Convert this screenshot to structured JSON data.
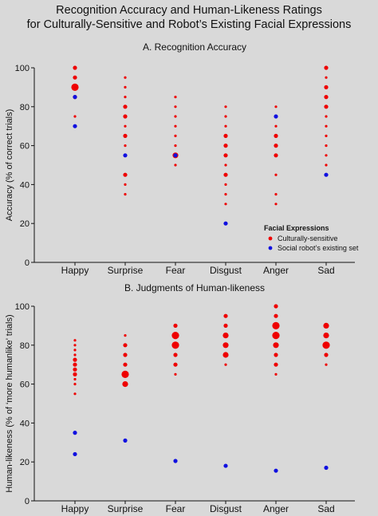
{
  "title": {
    "line1": "Recognition Accuracy and Human-Likeness Ratings",
    "line2": "for Culturally-Sensitive and Robot’s Existing Facial Expressions"
  },
  "colors": {
    "culturally": "#ee0000",
    "robot": "#1010e0",
    "background": "#d9d9d9"
  },
  "chart_data": [
    {
      "type": "scatter",
      "title": "A. Recognition Accuracy",
      "xlabel": "",
      "ylabel": "Accuracy (% of correct trials)",
      "categories": [
        "Happy",
        "Surprise",
        "Fear",
        "Disgust",
        "Anger",
        "Sad"
      ],
      "ylim": [
        0,
        100
      ],
      "yticks": [
        "0",
        "20",
        "40",
        "60",
        "80",
        "100"
      ],
      "grid": false,
      "legend": {
        "title": "Facial Expressions",
        "position": "lower-right",
        "entries": [
          "Culturally-sensitive",
          "Social robot’s existing set"
        ]
      },
      "series": [
        {
          "name": "Culturally-sensitive",
          "points": [
            {
              "x": "Happy",
              "y": 100,
              "size": 2
            },
            {
              "x": "Happy",
              "y": 95,
              "size": 2
            },
            {
              "x": "Happy",
              "y": 90,
              "size": 4
            },
            {
              "x": "Happy",
              "y": 85,
              "size": 2
            },
            {
              "x": "Happy",
              "y": 75,
              "size": 1
            },
            {
              "x": "Surprise",
              "y": 95,
              "size": 1
            },
            {
              "x": "Surprise",
              "y": 90,
              "size": 1
            },
            {
              "x": "Surprise",
              "y": 85,
              "size": 1
            },
            {
              "x": "Surprise",
              "y": 80,
              "size": 2
            },
            {
              "x": "Surprise",
              "y": 75,
              "size": 2
            },
            {
              "x": "Surprise",
              "y": 70,
              "size": 1
            },
            {
              "x": "Surprise",
              "y": 65,
              "size": 2
            },
            {
              "x": "Surprise",
              "y": 60,
              "size": 1
            },
            {
              "x": "Surprise",
              "y": 45,
              "size": 2
            },
            {
              "x": "Surprise",
              "y": 40,
              "size": 1
            },
            {
              "x": "Surprise",
              "y": 35,
              "size": 1
            },
            {
              "x": "Fear",
              "y": 85,
              "size": 1
            },
            {
              "x": "Fear",
              "y": 80,
              "size": 1
            },
            {
              "x": "Fear",
              "y": 75,
              "size": 1
            },
            {
              "x": "Fear",
              "y": 70,
              "size": 1
            },
            {
              "x": "Fear",
              "y": 65,
              "size": 1
            },
            {
              "x": "Fear",
              "y": 60,
              "size": 1
            },
            {
              "x": "Fear",
              "y": 55,
              "size": 3
            },
            {
              "x": "Fear",
              "y": 50,
              "size": 1
            },
            {
              "x": "Disgust",
              "y": 80,
              "size": 1
            },
            {
              "x": "Disgust",
              "y": 75,
              "size": 1
            },
            {
              "x": "Disgust",
              "y": 70,
              "size": 1
            },
            {
              "x": "Disgust",
              "y": 65,
              "size": 2
            },
            {
              "x": "Disgust",
              "y": 60,
              "size": 2
            },
            {
              "x": "Disgust",
              "y": 55,
              "size": 2
            },
            {
              "x": "Disgust",
              "y": 50,
              "size": 1
            },
            {
              "x": "Disgust",
              "y": 45,
              "size": 2
            },
            {
              "x": "Disgust",
              "y": 40,
              "size": 1
            },
            {
              "x": "Disgust",
              "y": 35,
              "size": 1
            },
            {
              "x": "Disgust",
              "y": 30,
              "size": 1
            },
            {
              "x": "Anger",
              "y": 80,
              "size": 1
            },
            {
              "x": "Anger",
              "y": 75,
              "size": 1
            },
            {
              "x": "Anger",
              "y": 70,
              "size": 1
            },
            {
              "x": "Anger",
              "y": 65,
              "size": 2
            },
            {
              "x": "Anger",
              "y": 60,
              "size": 2
            },
            {
              "x": "Anger",
              "y": 55,
              "size": 2
            },
            {
              "x": "Anger",
              "y": 45,
              "size": 1
            },
            {
              "x": "Anger",
              "y": 35,
              "size": 1
            },
            {
              "x": "Anger",
              "y": 30,
              "size": 1
            },
            {
              "x": "Sad",
              "y": 100,
              "size": 2
            },
            {
              "x": "Sad",
              "y": 95,
              "size": 1
            },
            {
              "x": "Sad",
              "y": 90,
              "size": 2
            },
            {
              "x": "Sad",
              "y": 85,
              "size": 2
            },
            {
              "x": "Sad",
              "y": 80,
              "size": 2
            },
            {
              "x": "Sad",
              "y": 75,
              "size": 1
            },
            {
              "x": "Sad",
              "y": 70,
              "size": 1
            },
            {
              "x": "Sad",
              "y": 65,
              "size": 1
            },
            {
              "x": "Sad",
              "y": 60,
              "size": 1
            },
            {
              "x": "Sad",
              "y": 55,
              "size": 1
            },
            {
              "x": "Sad",
              "y": 50,
              "size": 1
            }
          ]
        },
        {
          "name": "Social robot’s existing set",
          "points": [
            {
              "x": "Happy",
              "y": 85,
              "size": 2
            },
            {
              "x": "Happy",
              "y": 70,
              "size": 2
            },
            {
              "x": "Surprise",
              "y": 55,
              "size": 2
            },
            {
              "x": "Fear",
              "y": 55,
              "size": 2
            },
            {
              "x": "Disgust",
              "y": 20,
              "size": 2
            },
            {
              "x": "Anger",
              "y": 75,
              "size": 2
            },
            {
              "x": "Sad",
              "y": 45,
              "size": 2
            }
          ]
        }
      ]
    },
    {
      "type": "scatter",
      "title": "B. Judgments of Human-likeness",
      "xlabel": "",
      "ylabel": "Human-likeness (% of ‘more humanlike’ trials)",
      "categories": [
        "Happy",
        "Surprise",
        "Fear",
        "Disgust",
        "Anger",
        "Sad"
      ],
      "ylim": [
        0,
        100
      ],
      "yticks": [
        "0",
        "20",
        "40",
        "60",
        "80",
        "100"
      ],
      "grid": false,
      "series": [
        {
          "name": "Culturally-sensitive",
          "points": [
            {
              "x": "Happy",
              "y": 82.5,
              "size": 1
            },
            {
              "x": "Happy",
              "y": 80,
              "size": 1
            },
            {
              "x": "Happy",
              "y": 77.5,
              "size": 1
            },
            {
              "x": "Happy",
              "y": 75,
              "size": 1
            },
            {
              "x": "Happy",
              "y": 72.5,
              "size": 2
            },
            {
              "x": "Happy",
              "y": 70,
              "size": 2
            },
            {
              "x": "Happy",
              "y": 67.5,
              "size": 2
            },
            {
              "x": "Happy",
              "y": 65,
              "size": 2
            },
            {
              "x": "Happy",
              "y": 62.5,
              "size": 1
            },
            {
              "x": "Happy",
              "y": 60,
              "size": 1
            },
            {
              "x": "Happy",
              "y": 55,
              "size": 1
            },
            {
              "x": "Surprise",
              "y": 85,
              "size": 1
            },
            {
              "x": "Surprise",
              "y": 80,
              "size": 2
            },
            {
              "x": "Surprise",
              "y": 75,
              "size": 2
            },
            {
              "x": "Surprise",
              "y": 70,
              "size": 2
            },
            {
              "x": "Surprise",
              "y": 65,
              "size": 4
            },
            {
              "x": "Surprise",
              "y": 60,
              "size": 3
            },
            {
              "x": "Fear",
              "y": 90,
              "size": 2
            },
            {
              "x": "Fear",
              "y": 85,
              "size": 4
            },
            {
              "x": "Fear",
              "y": 80,
              "size": 4
            },
            {
              "x": "Fear",
              "y": 75,
              "size": 2
            },
            {
              "x": "Fear",
              "y": 70,
              "size": 2
            },
            {
              "x": "Fear",
              "y": 65,
              "size": 1
            },
            {
              "x": "Disgust",
              "y": 95,
              "size": 2
            },
            {
              "x": "Disgust",
              "y": 90,
              "size": 2
            },
            {
              "x": "Disgust",
              "y": 85,
              "size": 3
            },
            {
              "x": "Disgust",
              "y": 80,
              "size": 3
            },
            {
              "x": "Disgust",
              "y": 75,
              "size": 3
            },
            {
              "x": "Disgust",
              "y": 70,
              "size": 1
            },
            {
              "x": "Anger",
              "y": 100,
              "size": 2
            },
            {
              "x": "Anger",
              "y": 95,
              "size": 2
            },
            {
              "x": "Anger",
              "y": 90,
              "size": 4
            },
            {
              "x": "Anger",
              "y": 85,
              "size": 4
            },
            {
              "x": "Anger",
              "y": 80,
              "size": 3
            },
            {
              "x": "Anger",
              "y": 75,
              "size": 2
            },
            {
              "x": "Anger",
              "y": 70,
              "size": 2
            },
            {
              "x": "Anger",
              "y": 65,
              "size": 1
            },
            {
              "x": "Sad",
              "y": 90,
              "size": 3
            },
            {
              "x": "Sad",
              "y": 85,
              "size": 3
            },
            {
              "x": "Sad",
              "y": 80,
              "size": 4
            },
            {
              "x": "Sad",
              "y": 75,
              "size": 2
            },
            {
              "x": "Sad",
              "y": 70,
              "size": 1
            }
          ]
        },
        {
          "name": "Social robot’s existing set",
          "points": [
            {
              "x": "Happy",
              "y": 35,
              "size": 2
            },
            {
              "x": "Happy",
              "y": 24,
              "size": 2
            },
            {
              "x": "Surprise",
              "y": 31,
              "size": 2
            },
            {
              "x": "Fear",
              "y": 20.5,
              "size": 2
            },
            {
              "x": "Disgust",
              "y": 18,
              "size": 2
            },
            {
              "x": "Anger",
              "y": 15.5,
              "size": 2
            },
            {
              "x": "Sad",
              "y": 17,
              "size": 2
            }
          ]
        }
      ]
    }
  ]
}
